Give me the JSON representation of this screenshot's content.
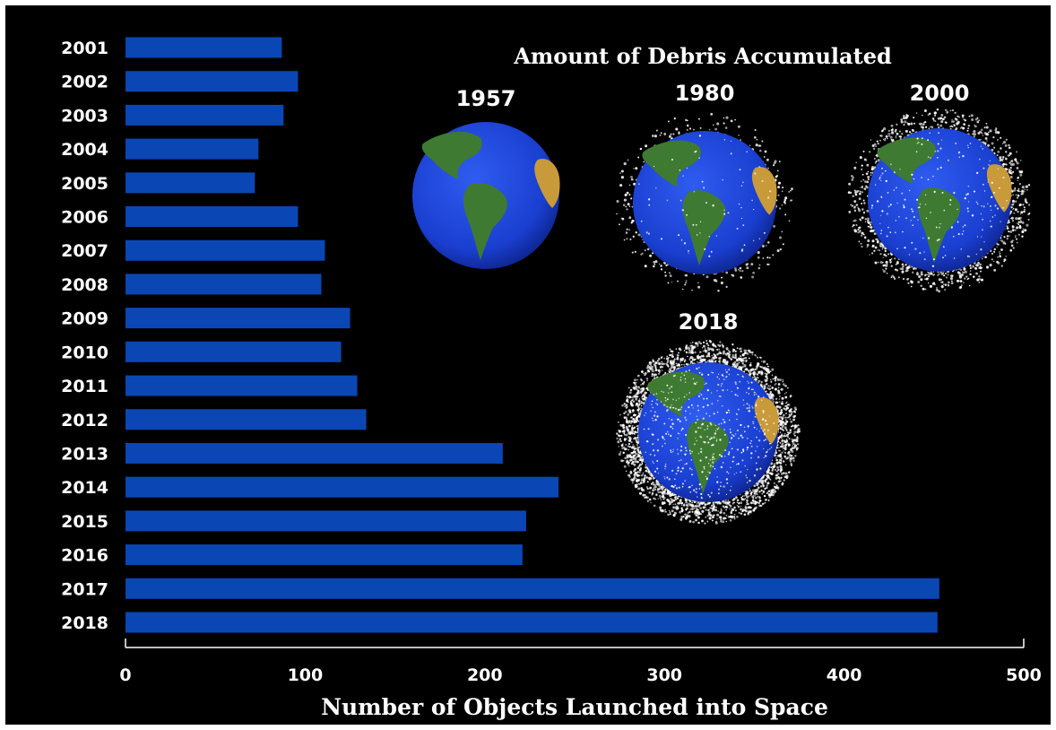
{
  "chart_data": {
    "type": "bar",
    "orientation": "horizontal",
    "categories": [
      "2001",
      "2002",
      "2003",
      "2004",
      "2005",
      "2006",
      "2007",
      "2008",
      "2009",
      "2010",
      "2011",
      "2012",
      "2013",
      "2014",
      "2015",
      "2016",
      "2017",
      "2018"
    ],
    "values": [
      87,
      96,
      88,
      74,
      72,
      96,
      111,
      109,
      125,
      120,
      129,
      134,
      210,
      241,
      223,
      221,
      453,
      452
    ],
    "xlabel": "Number of Objects Launched into Space",
    "ylabel": "",
    "xlim": [
      0,
      500
    ],
    "xticks": [
      "0",
      "100",
      "200",
      "300",
      "400",
      "500"
    ],
    "grid": false,
    "bar_color": "#0a47b4",
    "background_color": "#000000"
  },
  "inset": {
    "title": "Amount of Debris Accumulated",
    "globes": [
      {
        "year": "1957",
        "debris_level": "none"
      },
      {
        "year": "1980",
        "debris_level": "light"
      },
      {
        "year": "2000",
        "debris_level": "moderate"
      },
      {
        "year": "2018",
        "debris_level": "heavy"
      }
    ],
    "ocean_color": "#1a3fd0",
    "land_color": "#3f7a32",
    "debris_color": "#ffffff"
  }
}
